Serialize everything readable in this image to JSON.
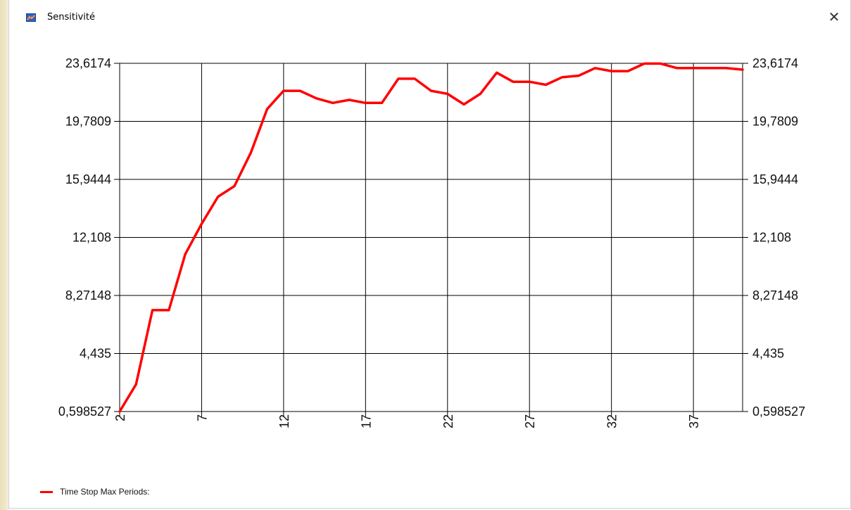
{
  "window": {
    "title": "Sensitivité",
    "close_label": "✕"
  },
  "chart_data": {
    "type": "line",
    "title": "",
    "xlabel": "",
    "ylabel": "",
    "x_ticks": [
      "2",
      "7",
      "12",
      "17",
      "22",
      "27",
      "32",
      "37"
    ],
    "y_ticks": [
      "23,6174",
      "19,7809",
      "15,9444",
      "12,108",
      "8,27148",
      "4,435",
      "0,598527"
    ],
    "ylim": [
      0.598527,
      23.6174
    ],
    "xlim": [
      2,
      40
    ],
    "grid": true,
    "legend_position": "bottom-left",
    "series": [
      {
        "name": "Time Stop Max Periods:",
        "color": "#ff0000",
        "x": [
          2,
          3,
          4,
          5,
          6,
          7,
          8,
          9,
          10,
          11,
          12,
          13,
          14,
          15,
          16,
          17,
          18,
          19,
          20,
          21,
          22,
          23,
          24,
          25,
          26,
          27,
          28,
          29,
          30,
          31,
          32,
          33,
          34,
          35,
          36,
          37,
          38,
          39,
          40
        ],
        "values": [
          0.6,
          2.4,
          7.3,
          7.3,
          11.0,
          13.0,
          14.8,
          15.5,
          17.7,
          20.6,
          21.8,
          21.8,
          21.3,
          21.0,
          21.2,
          21.0,
          21.0,
          22.6,
          22.6,
          21.8,
          21.6,
          20.9,
          21.6,
          23.0,
          22.4,
          22.4,
          22.2,
          22.7,
          22.8,
          23.3,
          23.1,
          23.1,
          23.6,
          23.6,
          23.3,
          23.3,
          23.3,
          23.3,
          23.2
        ]
      }
    ]
  }
}
